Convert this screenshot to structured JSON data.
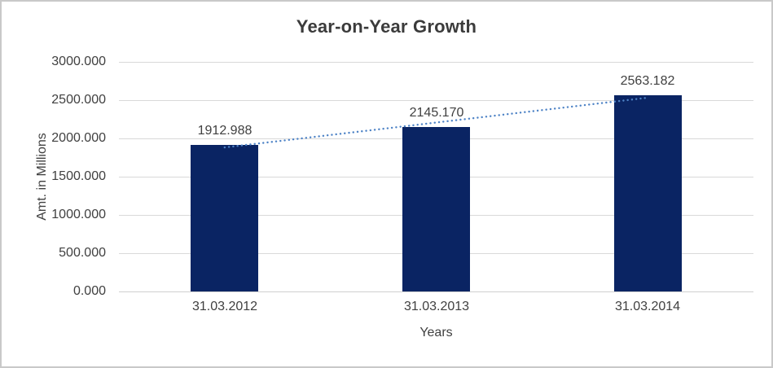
{
  "window": {
    "background": "#ffffff",
    "border_color": "#c9c9c9"
  },
  "chart_data": {
    "type": "bar",
    "title": "Year-on-Year Growth",
    "categories": [
      "31.03.2012",
      "31.03.2013",
      "31.03.2014"
    ],
    "values": [
      1912.988,
      2145.17,
      2563.182
    ],
    "value_labels": [
      "1912.988",
      "2145.170",
      "2563.182"
    ],
    "xlabel": "Years",
    "ylabel": "Amt. in Millions",
    "ylim": [
      0,
      3000
    ],
    "ytick_labels": [
      "0.000",
      "500.000",
      "1000.000",
      "1500.000",
      "2000.000",
      "2500.000",
      "3000.000"
    ],
    "grid": true,
    "legend": "none",
    "bar_color": "#0a2463",
    "gridline_color": "#d9d9d9",
    "label_color": "#404040",
    "title_color": "#3b3b3b",
    "trendline": {
      "type": "linear",
      "style": "dotted",
      "color": "#4e83c6",
      "values": [
        1882.0,
        2207.1,
        2532.2
      ]
    }
  }
}
